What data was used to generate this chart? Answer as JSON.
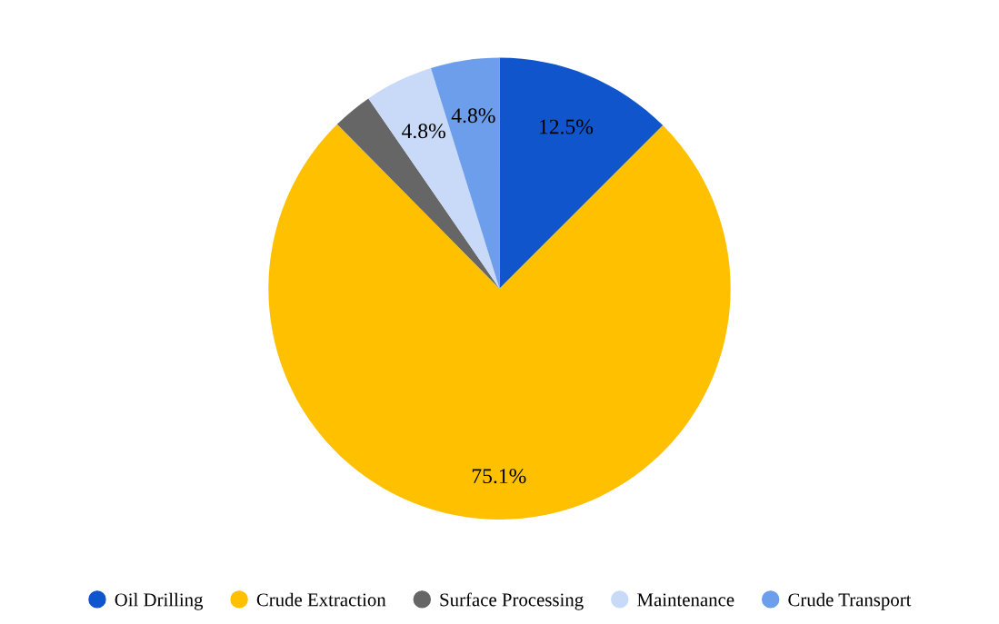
{
  "chart_data": {
    "type": "pie",
    "categories": [
      "Oil Drilling",
      "Crude Extraction",
      "Surface Processing",
      "Maintenance",
      "Crude Transport"
    ],
    "values": [
      12.5,
      75.1,
      2.8,
      4.8,
      4.8
    ],
    "colors": [
      "#1155cc",
      "#ffc000",
      "#666666",
      "#c9daf8",
      "#6d9eeb"
    ],
    "value_labels": [
      "12.5%",
      "75.1%",
      null,
      "4.8%",
      "4.8%"
    ],
    "legend": "bottom"
  }
}
